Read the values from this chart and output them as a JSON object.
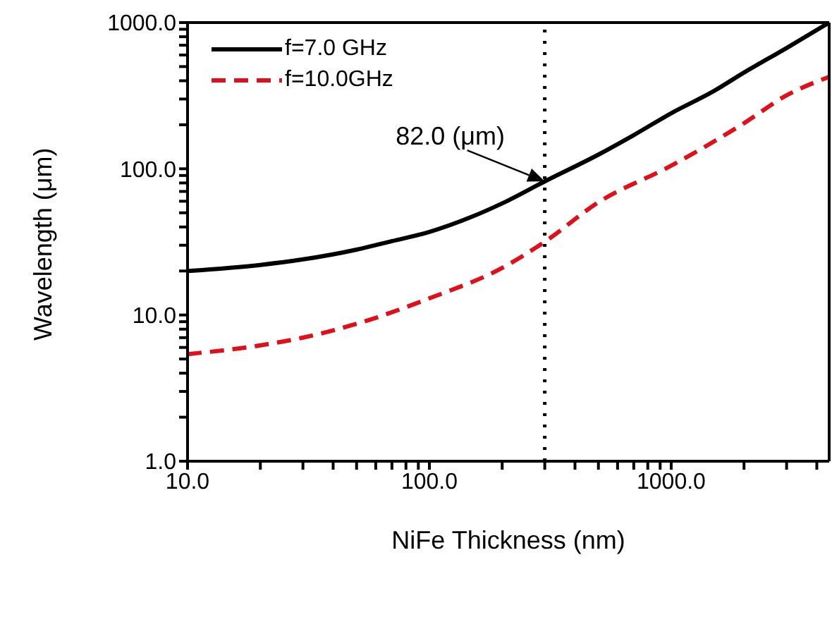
{
  "chart_data": {
    "type": "line",
    "xlabel": "NiFe Thickness (nm)",
    "ylabel": "Wavelength (μm)",
    "log": "xy",
    "legend": "top left",
    "marker": "none",
    "xlim": [
      10,
      4500
    ],
    "ylim": [
      1,
      1000
    ],
    "xticks": [
      {
        "value": 10,
        "label": "10.0"
      },
      {
        "value": 20,
        "label": null
      },
      {
        "value": 30,
        "label": null
      },
      {
        "value": 40,
        "label": null
      },
      {
        "value": 50,
        "label": null
      },
      {
        "value": 60,
        "label": null
      },
      {
        "value": 70,
        "label": null
      },
      {
        "value": 80,
        "label": null
      },
      {
        "value": 90,
        "label": null
      },
      {
        "value": 100,
        "label": "100.0"
      },
      {
        "value": 200,
        "label": null
      },
      {
        "value": 300,
        "label": null
      },
      {
        "value": 400,
        "label": null
      },
      {
        "value": 500,
        "label": null
      },
      {
        "value": 600,
        "label": null
      },
      {
        "value": 700,
        "label": null
      },
      {
        "value": 800,
        "label": null
      },
      {
        "value": 900,
        "label": null
      },
      {
        "value": 1000,
        "label": "1000.0"
      },
      {
        "value": 2000,
        "label": null
      },
      {
        "value": 3000,
        "label": null
      },
      {
        "value": 4000,
        "label": null
      }
    ],
    "yticks": [
      {
        "value": 1,
        "label": "1.0"
      },
      {
        "value": 2,
        "label": null
      },
      {
        "value": 3,
        "label": null
      },
      {
        "value": 4,
        "label": null
      },
      {
        "value": 5,
        "label": null
      },
      {
        "value": 6,
        "label": null
      },
      {
        "value": 7,
        "label": null
      },
      {
        "value": 8,
        "label": null
      },
      {
        "value": 9,
        "label": null
      },
      {
        "value": 10,
        "label": "10.0"
      },
      {
        "value": 20,
        "label": null
      },
      {
        "value": 30,
        "label": null
      },
      {
        "value": 40,
        "label": null
      },
      {
        "value": 50,
        "label": null
      },
      {
        "value": 60,
        "label": null
      },
      {
        "value": 70,
        "label": null
      },
      {
        "value": 80,
        "label": null
      },
      {
        "value": 90,
        "label": null
      },
      {
        "value": 100,
        "label": "100.0"
      },
      {
        "value": 200,
        "label": null
      },
      {
        "value": 300,
        "label": null
      },
      {
        "value": 400,
        "label": null
      },
      {
        "value": 500,
        "label": null
      },
      {
        "value": 600,
        "label": null
      },
      {
        "value": 700,
        "label": null
      },
      {
        "value": 800,
        "label": null
      },
      {
        "value": 900,
        "label": null
      },
      {
        "value": 1000,
        "label": "1000.0"
      }
    ],
    "series": [
      {
        "name": "f=7.0 GHz",
        "color": "#000000",
        "line_style": "solid",
        "x": [
          10,
          20,
          30,
          50,
          70,
          100,
          150,
          200,
          300,
          500,
          700,
          1000,
          1500,
          2000,
          3000,
          4500
        ],
        "values": [
          20,
          22,
          24,
          28,
          32,
          37,
          47,
          58,
          82,
          125,
          170,
          240,
          340,
          455,
          670,
          1000
        ]
      },
      {
        "name": "f=10.0GHz",
        "color": "#e0101a",
        "line_style": "dashed",
        "x": [
          10,
          20,
          30,
          50,
          100,
          200,
          300,
          500,
          1000,
          2000,
          3000,
          4500
        ],
        "values": [
          5.4,
          6.2,
          7,
          8.7,
          13,
          21,
          31.7,
          59,
          105,
          205,
          318,
          425
        ]
      }
    ],
    "ref_lines": [
      {
        "axis": "x",
        "value": 300,
        "line_style": "dotted",
        "color": "#000000"
      }
    ],
    "annotations": [
      {
        "text": "82.0 (μm)",
        "x": 300,
        "y": 82
      }
    ]
  }
}
